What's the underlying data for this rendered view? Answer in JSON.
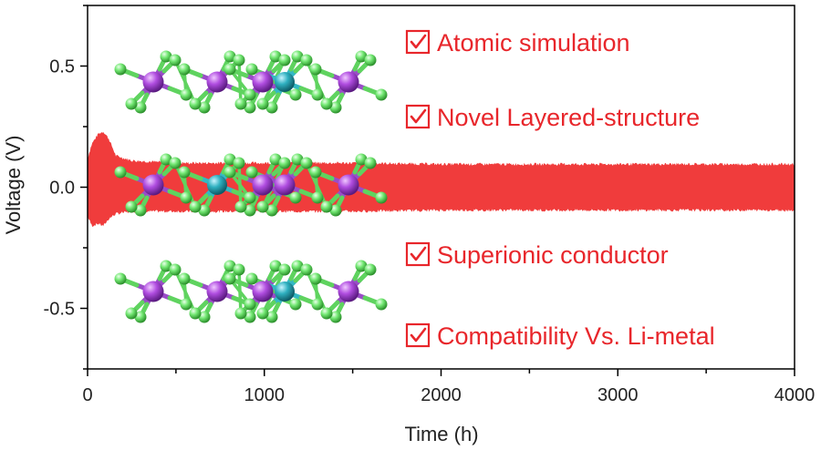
{
  "chart_data": {
    "type": "line",
    "xlabel": "Time (h)",
    "ylabel": "Voltage (V)",
    "xlim": [
      0,
      4000
    ],
    "ylim": [
      -0.75,
      0.75
    ],
    "x_ticks": [
      0,
      1000,
      2000,
      3000,
      4000
    ],
    "y_ticks": [
      0.5,
      0.0,
      -0.5
    ],
    "x_tick_labels": [
      "0",
      "1000",
      "2000",
      "3000",
      "4000"
    ],
    "y_tick_labels": [
      "0.5",
      "0.0",
      "-0.5"
    ],
    "grid": false,
    "series": [
      {
        "color": "#f03c3c",
        "envelope": {
          "x": [
            0,
            25,
            60,
            90,
            120,
            160,
            250,
            500,
            1000,
            1500,
            2000,
            2500,
            3000,
            3500,
            4000
          ],
          "upper": [
            0.12,
            0.18,
            0.22,
            0.23,
            0.2,
            0.13,
            0.11,
            0.1,
            0.1,
            0.1,
            0.095,
            0.095,
            0.095,
            0.095,
            0.095
          ],
          "lower": [
            -0.12,
            -0.16,
            -0.15,
            -0.16,
            -0.13,
            -0.11,
            -0.1,
            -0.1,
            -0.1,
            -0.1,
            -0.095,
            -0.095,
            -0.095,
            -0.095,
            -0.095
          ]
        }
      }
    ]
  },
  "features": [
    "Atomic simulation",
    "Novel Layered-structure",
    "Superionic conductor",
    "Compatibility Vs. Li-metal"
  ],
  "colors": {
    "voltage_band": "#f03c3c",
    "feature_text": "#e8262b",
    "metal_atom": "#a43fd6",
    "center_atom": "#2ba7b7",
    "halide_atom": "#6fe36f",
    "bond_purple": "#9a4cc8",
    "bond_green": "#5fd35f"
  }
}
